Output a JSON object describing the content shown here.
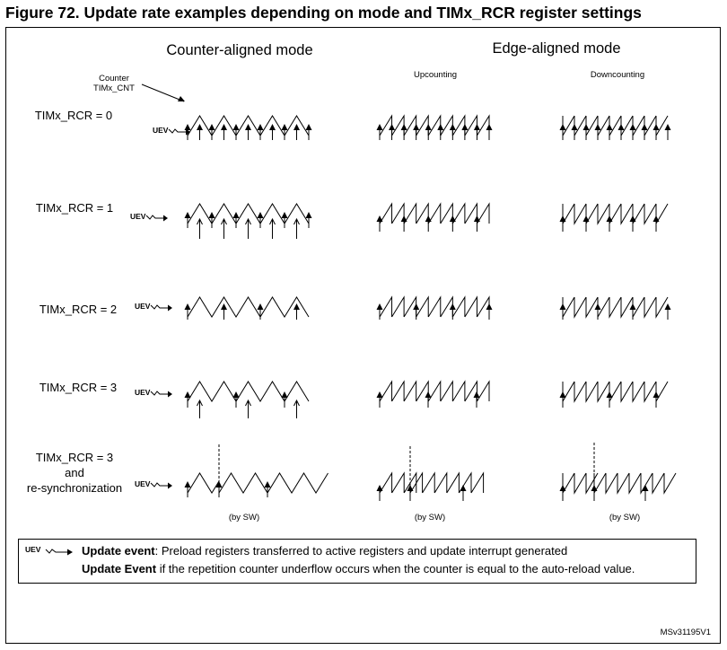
{
  "title": "Figure 72. Update rate examples depending on mode and TIMx_RCR register settings",
  "headers": {
    "counter_aligned": "Counter-aligned mode",
    "edge_aligned": "Edge-aligned mode",
    "upcounting": "Upcounting",
    "downcounting": "Downcounting"
  },
  "counter_label_line1": "Counter",
  "counter_label_line2": "TIMx_CNT",
  "uev_label": "UEV",
  "rows": [
    {
      "label_lines": [
        "TIMx_RCR = 0"
      ]
    },
    {
      "label_lines": [
        "TIMx_RCR = 1"
      ]
    },
    {
      "label_lines": [
        "TIMx_RCR = 2"
      ]
    },
    {
      "label_lines": [
        "TIMx_RCR = 3"
      ]
    },
    {
      "label_lines": [
        "TIMx_RCR = 3",
        "and",
        "re-synchronization"
      ]
    }
  ],
  "by_sw": "(by SW)",
  "legend": {
    "line1_bold": "Update event",
    "line1_rest": ": Preload registers transferred to active registers and update interrupt generated",
    "line2_bold": "Update Event",
    "line2_rest": " if the repetition counter underflow occurs when the counter is equal to the auto-reload value."
  },
  "ref_code": "MSv31195V1"
}
